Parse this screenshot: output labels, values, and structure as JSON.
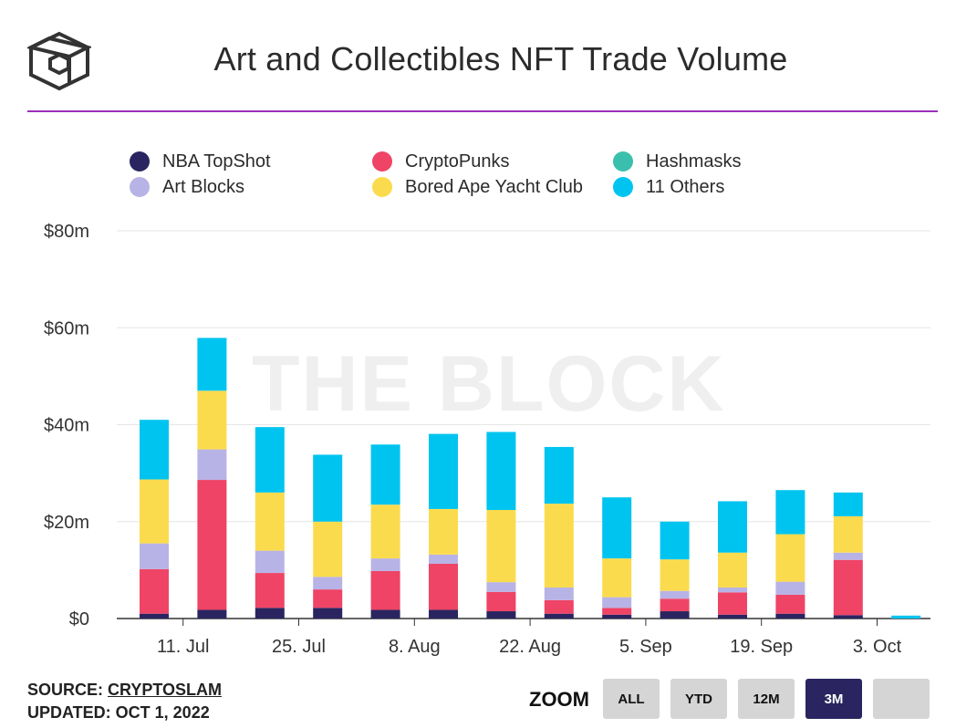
{
  "header": {
    "title": "Art and Collectibles NFT Trade Volume",
    "watermark": "THE BLOCK"
  },
  "footer": {
    "source_prefix": "SOURCE: ",
    "source_name": "CRYPTOSLAM",
    "updated": "UPDATED: OCT 1, 2022"
  },
  "zoom": {
    "label": "ZOOM",
    "buttons": [
      {
        "label": "ALL",
        "active": false
      },
      {
        "label": "YTD",
        "active": false
      },
      {
        "label": "12M",
        "active": false
      },
      {
        "label": "3M",
        "active": true
      },
      {
        "label": "",
        "active": false
      }
    ]
  },
  "chart_data": {
    "type": "bar",
    "stacked": true,
    "title": "Art and Collectibles NFT Trade Volume",
    "xlabel": "",
    "ylabel": "",
    "ylim": [
      0,
      80
    ],
    "y_ticks": [
      0,
      20,
      40,
      60,
      80
    ],
    "y_tick_labels": [
      "$0",
      "$20m",
      "$40m",
      "$60m",
      "$80m"
    ],
    "x_tick_labels": [
      "11. Jul",
      "25. Jul",
      "8. Aug",
      "22. Aug",
      "5. Sep",
      "19. Sep",
      "3. Oct"
    ],
    "x_tick_after_week": [
      0,
      2,
      4,
      6,
      8,
      10,
      12
    ],
    "legend_position": "top",
    "categories": [
      "4. Jul",
      "11. Jul",
      "18. Jul",
      "25. Jul",
      "1. Aug",
      "8. Aug",
      "15. Aug",
      "22. Aug",
      "29. Aug",
      "5. Sep",
      "12. Sep",
      "19. Sep",
      "26. Sep",
      "3. Oct"
    ],
    "series": [
      {
        "name": "NBA TopShot",
        "color": "#2a2560",
        "values": [
          1.0,
          1.8,
          2.2,
          2.2,
          1.8,
          1.8,
          1.5,
          1.0,
          0.8,
          1.5,
          0.8,
          1.0,
          0.7,
          0.0
        ]
      },
      {
        "name": "CryptoPunks",
        "color": "#ef4466",
        "values": [
          9.2,
          26.8,
          7.2,
          3.8,
          8.0,
          9.5,
          4.0,
          2.8,
          1.4,
          2.6,
          4.6,
          3.9,
          11.4,
          0.0
        ]
      },
      {
        "name": "Hashmasks",
        "color": "#3bbfad",
        "values": [
          0.0,
          0.0,
          0.0,
          0.0,
          0.0,
          0.0,
          0.0,
          0.0,
          0.0,
          0.0,
          0.0,
          0.0,
          0.0,
          0.0
        ]
      },
      {
        "name": "Art Blocks",
        "color": "#b8b3e6",
        "values": [
          5.3,
          6.3,
          4.6,
          2.6,
          2.6,
          1.9,
          2.0,
          2.6,
          2.2,
          1.6,
          1.0,
          2.7,
          1.5,
          0.0
        ]
      },
      {
        "name": "Bored Ape Yacht Club",
        "color": "#fbdb4e",
        "values": [
          13.2,
          12.1,
          12.0,
          11.4,
          11.1,
          9.4,
          14.9,
          17.3,
          8.0,
          6.5,
          7.2,
          9.8,
          7.5,
          0.0
        ]
      },
      {
        "name": "11 Others",
        "color": "#00c4f0",
        "values": [
          12.3,
          10.9,
          13.5,
          13.8,
          12.4,
          15.5,
          16.1,
          11.7,
          12.6,
          7.8,
          10.6,
          9.1,
          4.9,
          0.6
        ]
      }
    ]
  }
}
